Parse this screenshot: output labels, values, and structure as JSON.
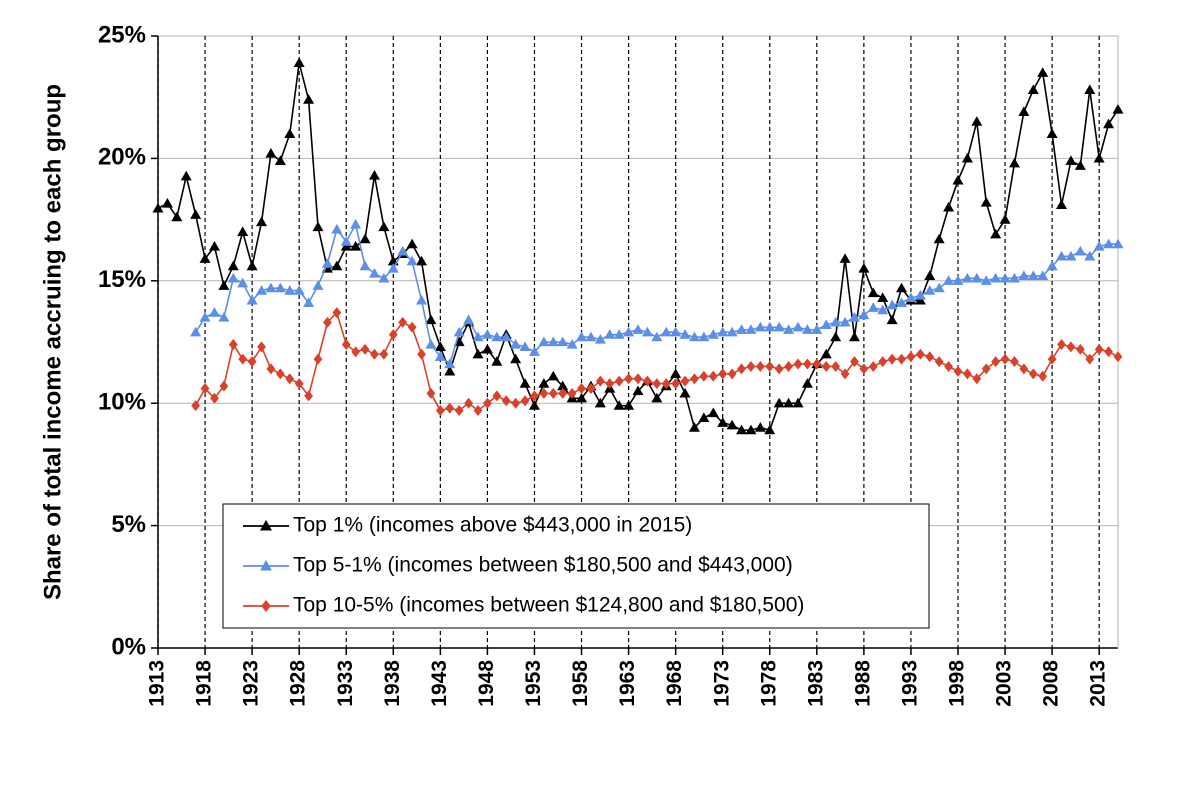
{
  "chart_data": {
    "type": "line",
    "y_label": "Share of total income accruing to each group",
    "x": [
      1913,
      1914,
      1915,
      1916,
      1917,
      1918,
      1919,
      1920,
      1921,
      1922,
      1923,
      1924,
      1925,
      1926,
      1927,
      1928,
      1929,
      1930,
      1931,
      1932,
      1933,
      1934,
      1935,
      1936,
      1937,
      1938,
      1939,
      1940,
      1941,
      1942,
      1943,
      1944,
      1945,
      1946,
      1947,
      1948,
      1949,
      1950,
      1951,
      1952,
      1953,
      1954,
      1955,
      1956,
      1957,
      1958,
      1959,
      1960,
      1961,
      1962,
      1963,
      1964,
      1965,
      1966,
      1967,
      1968,
      1969,
      1970,
      1971,
      1972,
      1973,
      1974,
      1975,
      1976,
      1977,
      1978,
      1979,
      1980,
      1981,
      1982,
      1983,
      1984,
      1985,
      1986,
      1987,
      1988,
      1989,
      1990,
      1991,
      1992,
      1993,
      1994,
      1995,
      1996,
      1997,
      1998,
      1999,
      2000,
      2001,
      2002,
      2003,
      2004,
      2005,
      2006,
      2007,
      2008,
      2009,
      2010,
      2011,
      2012,
      2013,
      2014,
      2015
    ],
    "series": [
      {
        "name": "Top 1% (incomes above $443,000 in 2015)",
        "color": "#000000",
        "marker": "triangle",
        "values": [
          17.96,
          18.16,
          17.6,
          19.27,
          17.7,
          15.9,
          16.4,
          14.8,
          15.6,
          17.0,
          15.6,
          17.4,
          20.2,
          19.9,
          21.0,
          23.9,
          22.4,
          17.2,
          15.5,
          15.6,
          16.4,
          16.4,
          16.7,
          19.3,
          17.2,
          15.8,
          16.1,
          16.5,
          15.8,
          13.4,
          12.3,
          11.3,
          12.5,
          13.3,
          12.0,
          12.2,
          11.7,
          12.8,
          11.8,
          10.8,
          9.9,
          10.8,
          11.1,
          10.7,
          10.2,
          10.2,
          10.7,
          10.0,
          10.6,
          9.9,
          9.9,
          10.5,
          10.9,
          10.2,
          10.7,
          11.2,
          10.4,
          9.0,
          9.4,
          9.6,
          9.2,
          9.1,
          8.9,
          8.9,
          9.0,
          8.9,
          10.0,
          10.0,
          10.0,
          10.8,
          11.6,
          12.0,
          12.7,
          15.9,
          12.7,
          15.5,
          14.5,
          14.3,
          13.4,
          14.7,
          14.2,
          14.2,
          15.2,
          16.7,
          18.0,
          19.1,
          20.0,
          21.5,
          18.2,
          16.9,
          17.5,
          19.8,
          21.9,
          22.8,
          23.5,
          21.0,
          18.1,
          19.9,
          19.7,
          22.8,
          20.0,
          21.4,
          22.0
        ]
      },
      {
        "name": "Top 5-1% (incomes between $180,500 and $443,000)",
        "color": "#5b8fe8",
        "marker": "triangle",
        "values": [
          null,
          null,
          null,
          null,
          12.9,
          13.5,
          13.7,
          13.5,
          15.1,
          14.9,
          14.2,
          14.6,
          14.7,
          14.7,
          14.6,
          14.6,
          14.1,
          14.8,
          15.7,
          17.1,
          16.6,
          17.3,
          15.6,
          15.3,
          15.1,
          15.5,
          16.2,
          15.8,
          14.2,
          12.4,
          11.9,
          11.6,
          12.9,
          13.4,
          12.7,
          12.8,
          12.7,
          12.7,
          12.4,
          12.3,
          12.1,
          12.5,
          12.5,
          12.5,
          12.4,
          12.7,
          12.7,
          12.6,
          12.8,
          12.8,
          12.9,
          13.0,
          12.9,
          12.7,
          12.9,
          12.9,
          12.8,
          12.7,
          12.7,
          12.8,
          12.9,
          12.9,
          13.0,
          13.0,
          13.1,
          13.1,
          13.1,
          13.0,
          13.1,
          13.0,
          13.0,
          13.2,
          13.3,
          13.3,
          13.5,
          13.6,
          13.9,
          13.8,
          14.0,
          14.1,
          14.3,
          14.4,
          14.6,
          14.7,
          15.0,
          15.0,
          15.1,
          15.1,
          15.0,
          15.1,
          15.1,
          15.1,
          15.2,
          15.2,
          15.2,
          15.6,
          16.0,
          16.0,
          16.2,
          16.0,
          16.4,
          16.5,
          16.5
        ]
      },
      {
        "name": "Top 10-5% (incomes between $124,800 and $180,500)",
        "color": "#d8412b",
        "marker": "diamond",
        "values": [
          null,
          null,
          null,
          null,
          9.9,
          10.6,
          10.2,
          10.7,
          12.4,
          11.8,
          11.7,
          12.3,
          11.4,
          11.2,
          11.0,
          10.8,
          10.3,
          11.8,
          13.3,
          13.7,
          12.4,
          12.1,
          12.2,
          12.0,
          12.0,
          12.8,
          13.3,
          13.1,
          12.0,
          10.4,
          9.7,
          9.8,
          9.7,
          10.0,
          9.7,
          10.0,
          10.3,
          10.1,
          10.0,
          10.1,
          10.3,
          10.4,
          10.4,
          10.4,
          10.4,
          10.6,
          10.6,
          10.9,
          10.8,
          10.9,
          11.0,
          11.0,
          10.9,
          10.8,
          10.8,
          10.8,
          10.9,
          11.0,
          11.1,
          11.1,
          11.2,
          11.2,
          11.4,
          11.5,
          11.5,
          11.5,
          11.4,
          11.5,
          11.6,
          11.6,
          11.6,
          11.5,
          11.5,
          11.2,
          11.7,
          11.4,
          11.5,
          11.7,
          11.8,
          11.8,
          11.9,
          12.0,
          11.9,
          11.7,
          11.5,
          11.3,
          11.2,
          11.0,
          11.4,
          11.7,
          11.8,
          11.7,
          11.4,
          11.2,
          11.1,
          11.8,
          12.4,
          12.3,
          12.2,
          11.8,
          12.2,
          12.1,
          11.9
        ]
      }
    ],
    "xlim": [
      1913,
      2015
    ],
    "xticks": [
      1913,
      1918,
      1923,
      1928,
      1933,
      1938,
      1943,
      1948,
      1953,
      1958,
      1963,
      1968,
      1973,
      1978,
      1983,
      1988,
      1993,
      1998,
      2003,
      2008,
      2013
    ],
    "ylim": [
      0,
      25
    ],
    "yticks": [
      {
        "value": 0,
        "label": "0%"
      },
      {
        "value": 5,
        "label": "5%"
      },
      {
        "value": 10,
        "label": "10%"
      },
      {
        "value": 15,
        "label": "15%"
      },
      {
        "value": 20,
        "label": "20%"
      },
      {
        "value": 25,
        "label": "25%"
      }
    ],
    "grid": true,
    "legend_loc": "lower center"
  }
}
